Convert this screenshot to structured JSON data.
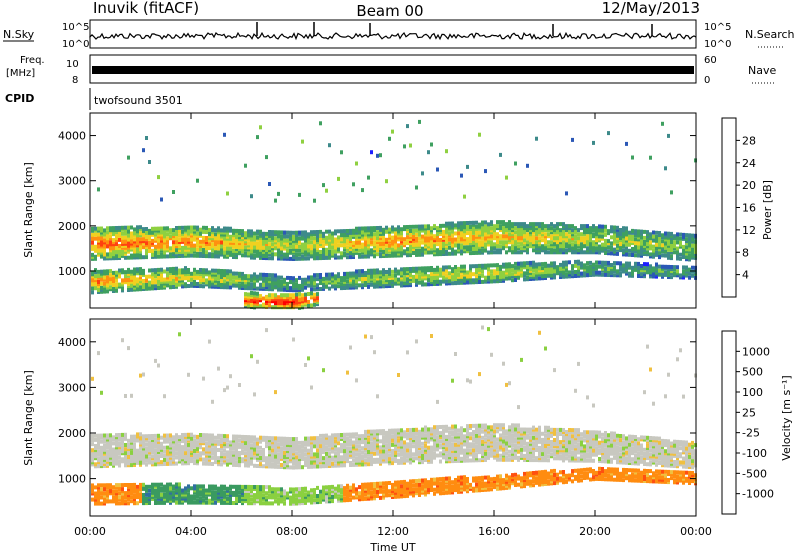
{
  "header": {
    "station": "Inuvik (fitACF)",
    "beam": "Beam 00",
    "date": "12/May/2013"
  },
  "strips": {
    "nsky": {
      "label": "N.Sky",
      "right_label": "N.Search",
      "ticks": [
        "10^5",
        "10^0"
      ]
    },
    "freq": {
      "label_line1": "Freq.",
      "label_line2": "[MHz]",
      "left_ticks": [
        "10",
        "8"
      ],
      "right_ticks": [
        "60",
        "0"
      ],
      "right_label": "Nave"
    },
    "cpid": {
      "label": "CPID",
      "value": "twofsound 3501"
    }
  },
  "time_axis": {
    "label": "Time UT",
    "ticks": [
      "00:00",
      "04:00",
      "08:00",
      "12:00",
      "16:00",
      "20:00",
      "00:00"
    ]
  },
  "chart_data": [
    {
      "type": "heatmap",
      "title": "Power",
      "xlabel": "Time UT",
      "ylabel": "Slant Range [km]",
      "x_range": [
        "00:00",
        "24:00"
      ],
      "ylim": [
        180,
        4500
      ],
      "yticks": [
        1000,
        2000,
        3000,
        4000
      ],
      "colorbar": {
        "label": "Power [dB]",
        "ticks": [
          "28",
          "24",
          "20",
          "16",
          "12",
          "8",
          "4"
        ],
        "values": [
          28,
          24,
          20,
          16,
          12,
          8,
          4
        ],
        "min": 0,
        "max": 32,
        "colors": [
          "#1e1eff",
          "#2b58b6",
          "#3d8a8a",
          "#3fa060",
          "#8fd040",
          "#f0d020",
          "#ff9010",
          "#ff4010",
          "#ff0000"
        ]
      },
      "bands": [
        {
          "t": [
            0,
            4,
            8,
            12,
            16,
            20,
            24
          ],
          "center_km": [
            1650,
            1700,
            1600,
            1700,
            1800,
            1750,
            1550
          ],
          "width_km": [
            700,
            650,
            600,
            650,
            700,
            600,
            550
          ],
          "level_db": [
            26,
            24,
            18,
            24,
            22,
            18,
            16
          ]
        },
        {
          "t": [
            0,
            4,
            8,
            12,
            16,
            20,
            24
          ],
          "center_km": [
            800,
            900,
            750,
            900,
            1000,
            1100,
            1000
          ],
          "width_km": [
            500,
            400,
            300,
            400,
            400,
            300,
            250
          ],
          "level_db": [
            24,
            20,
            14,
            18,
            20,
            14,
            12
          ]
        },
        {
          "t": [
            6,
            7,
            8,
            9
          ],
          "center_km": [
            400,
            350,
            350,
            420
          ],
          "width_km": [
            300,
            350,
            350,
            250
          ],
          "level_db": [
            28,
            30,
            30,
            26
          ]
        }
      ]
    },
    {
      "type": "heatmap",
      "title": "Velocity",
      "xlabel": "Time UT",
      "ylabel": "Slant Range [km]",
      "x_range": [
        "00:00",
        "24:00"
      ],
      "ylim": [
        180,
        4500
      ],
      "yticks": [
        1000,
        2000,
        3000,
        4000
      ],
      "colorbar": {
        "label": "Velocity [m s⁻¹]",
        "ticks": [
          "1000",
          "500",
          "100",
          "25",
          "-25",
          "-100",
          "-500",
          "-1000"
        ],
        "colors": [
          "#2040c0",
          "#3070a0",
          "#3a9a60",
          "#8ad040",
          "#c8c8c0",
          "#f0c040",
          "#ff8c10",
          "#ff5010",
          "#ff0000"
        ]
      },
      "bands": [
        {
          "t": [
            0,
            4,
            8,
            12,
            16,
            20,
            24
          ],
          "center_km": [
            1650,
            1700,
            1600,
            1750,
            1850,
            1750,
            1550
          ],
          "width_km": [
            700,
            650,
            650,
            750,
            800,
            650,
            550
          ],
          "velocity_class": [
            "-25..25",
            "-25..25",
            "-25..25",
            "-25..25",
            "-25..25",
            "-25..25",
            "-25..25"
          ]
        },
        {
          "t": [
            0,
            4,
            8,
            12,
            16,
            20,
            24
          ],
          "center_km": [
            700,
            700,
            650,
            800,
            950,
            1150,
            1050
          ],
          "width_km": [
            450,
            400,
            350,
            350,
            300,
            250,
            250
          ],
          "velocity_class": [
            "-100..-500",
            "100..500",
            "25..100",
            "-100..-500",
            "-100..-500",
            "-100..-500",
            "-100..-500"
          ]
        }
      ]
    }
  ]
}
